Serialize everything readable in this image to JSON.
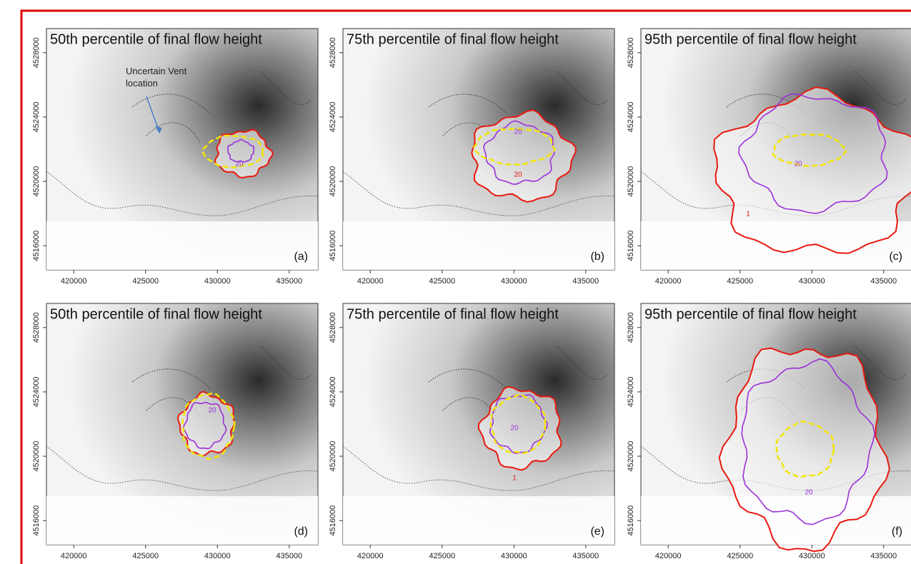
{
  "chart_data": [
    {
      "type": "contour",
      "title": "50th percentile of final flow height",
      "panel_label": "(a)",
      "annotation": "Uncertain Vent location",
      "contour_labels": [
        "20"
      ],
      "xlim": [
        418100,
        437000
      ],
      "ylim": [
        4514500,
        4529500
      ],
      "xticks": [
        420000,
        425000,
        430000,
        435000
      ],
      "yticks": [
        4516000,
        4520000,
        4524000,
        4528000
      ]
    },
    {
      "type": "contour",
      "title": "75th percentile of final flow height",
      "panel_label": "(b)",
      "contour_labels": [
        "20",
        "20"
      ],
      "xlim": [
        418100,
        437000
      ],
      "ylim": [
        4514500,
        4529500
      ],
      "xticks": [
        420000,
        425000,
        430000,
        435000
      ],
      "yticks": [
        4516000,
        4520000,
        4524000,
        4528000
      ]
    },
    {
      "type": "contour",
      "title": "95th percentile of final flow height",
      "panel_label": "(c)",
      "contour_labels": [
        "20",
        "1"
      ],
      "xlim": [
        418100,
        437000
      ],
      "ylim": [
        4514500,
        4529500
      ],
      "xticks": [
        420000,
        425000,
        430000,
        435000
      ],
      "yticks": [
        4516000,
        4520000,
        4524000,
        4528000
      ]
    },
    {
      "type": "contour",
      "title": "50th percentile of final flow height",
      "panel_label": "(d)",
      "contour_labels": [
        "20"
      ],
      "xlim": [
        418100,
        437000
      ],
      "ylim": [
        4514500,
        4529500
      ],
      "xticks": [
        420000,
        425000,
        430000,
        435000
      ],
      "yticks": [
        4516000,
        4520000,
        4524000,
        4528000
      ]
    },
    {
      "type": "contour",
      "title": "75th percentile of final flow height",
      "panel_label": "(e)",
      "contour_labels": [
        "20",
        "1"
      ],
      "xlim": [
        418100,
        437000
      ],
      "ylim": [
        4514500,
        4529500
      ],
      "xticks": [
        420000,
        425000,
        430000,
        435000
      ],
      "yticks": [
        4516000,
        4520000,
        4524000,
        4528000
      ]
    },
    {
      "type": "contour",
      "title": "95th percentile of final flow height",
      "panel_label": "(f)",
      "contour_labels": [
        "20"
      ],
      "xlim": [
        418100,
        437000
      ],
      "ylim": [
        4514500,
        4529500
      ],
      "xticks": [
        420000,
        425000,
        430000,
        435000
      ],
      "yticks": [
        4516000,
        4520000,
        4524000,
        4528000
      ]
    }
  ]
}
